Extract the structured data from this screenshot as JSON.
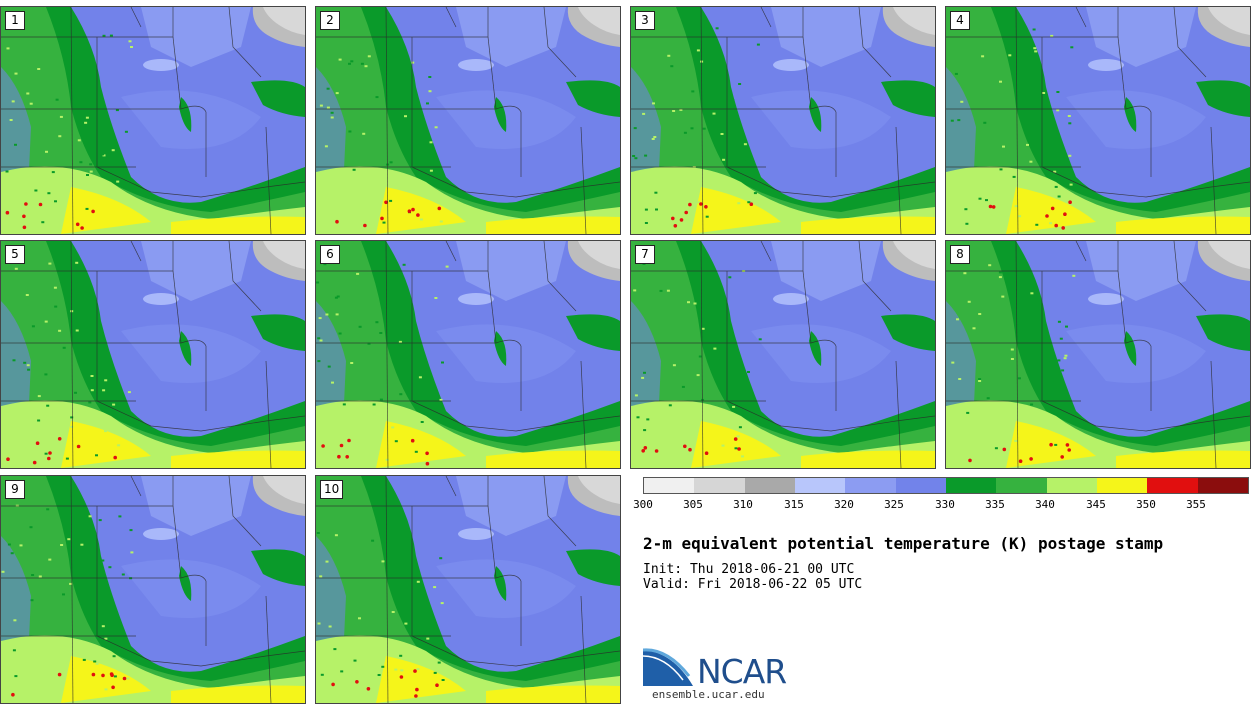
{
  "title": "2-m equivalent potential temperature (K) postage stamp",
  "init": "Init: Thu 2018-06-21 00 UTC",
  "valid": "Valid: Fri 2018-06-22 05 UTC",
  "stamps": [
    "1",
    "2",
    "3",
    "4",
    "5",
    "6",
    "7",
    "8",
    "9",
    "10"
  ],
  "colorbar": {
    "ticks": [
      "300",
      "305",
      "310",
      "315",
      "320",
      "325",
      "330",
      "335",
      "340",
      "345",
      "350",
      "355"
    ],
    "colors": [
      "#f0f0f0",
      "#d6d6d6",
      "#a9a9a9",
      "#b8c6fb",
      "#8c9cf2",
      "#7283ea",
      "#0a9a2a",
      "#36b23f",
      "#b6f268",
      "#f5f51a",
      "#e10f0f",
      "#8b0d0d"
    ]
  },
  "logo": {
    "text": "NCAR",
    "url": "ensemble.ucar.edu",
    "icon": "ncar-logo-icon"
  }
}
